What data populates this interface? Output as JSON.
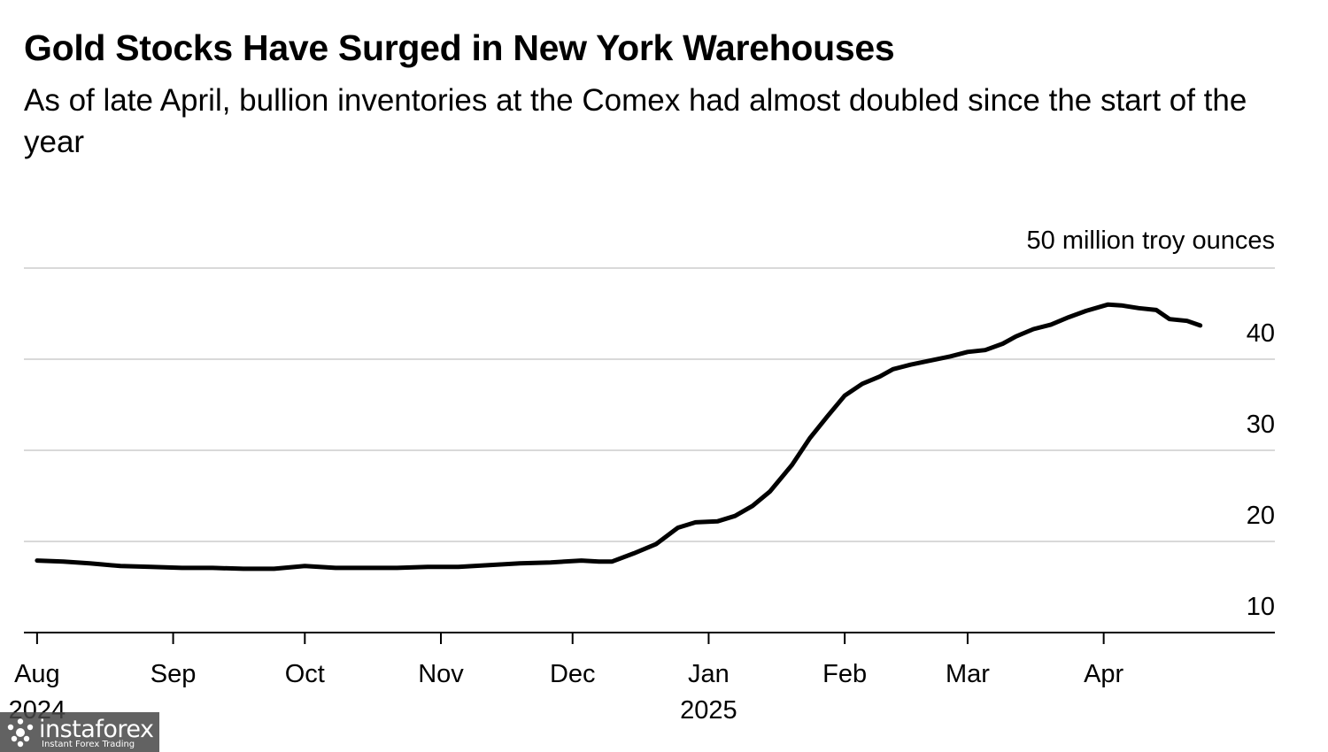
{
  "chart_data": {
    "type": "line",
    "title": "Gold Stocks Have Surged in New York Warehouses",
    "subtitle": "As of late April, bullion inventories at the Comex had almost doubled since the start of the year",
    "unit_label": "50 million troy ounces",
    "yaxis": {
      "position": "right",
      "ylim": [
        10,
        50
      ],
      "ticks": [
        10,
        20,
        30,
        40
      ],
      "tick_labels": [
        "10",
        "20",
        "30",
        "40"
      ]
    },
    "xaxis": {
      "xlim": [
        "2024-07-29",
        "2025-05-10"
      ],
      "ticks": [
        {
          "date": "2024-08-01",
          "label": "Aug",
          "year": "2024"
        },
        {
          "date": "2024-09-01",
          "label": "Sep",
          "year": ""
        },
        {
          "date": "2024-10-01",
          "label": "Oct",
          "year": ""
        },
        {
          "date": "2024-11-01",
          "label": "Nov",
          "year": ""
        },
        {
          "date": "2024-12-01",
          "label": "Dec",
          "year": ""
        },
        {
          "date": "2025-01-01",
          "label": "Jan",
          "year": "2025"
        },
        {
          "date": "2025-02-01",
          "label": "Feb",
          "year": ""
        },
        {
          "date": "2025-03-01",
          "label": "Mar",
          "year": ""
        },
        {
          "date": "2025-04-01",
          "label": "Apr",
          "year": ""
        }
      ]
    },
    "grid": true,
    "series": [
      {
        "x": [
          "2024-08-01",
          "2024-08-07",
          "2024-08-13",
          "2024-08-20",
          "2024-08-27",
          "2024-09-03",
          "2024-09-10",
          "2024-09-17",
          "2024-09-24",
          "2024-10-01",
          "2024-10-08",
          "2024-10-15",
          "2024-10-22",
          "2024-10-29",
          "2024-11-05",
          "2024-11-12",
          "2024-11-19",
          "2024-11-26",
          "2024-12-03",
          "2024-12-07",
          "2024-12-10",
          "2024-12-15",
          "2024-12-20",
          "2024-12-25",
          "2024-12-29",
          "2025-01-03",
          "2025-01-07",
          "2025-01-11",
          "2025-01-15",
          "2025-01-20",
          "2025-01-24",
          "2025-01-28",
          "2025-02-01",
          "2025-02-05",
          "2025-02-09",
          "2025-02-12",
          "2025-02-16",
          "2025-02-20",
          "2025-02-25",
          "2025-03-01",
          "2025-03-05",
          "2025-03-09",
          "2025-03-12",
          "2025-03-16",
          "2025-03-20",
          "2025-03-24",
          "2025-03-28",
          "2025-04-02",
          "2025-04-05",
          "2025-04-09",
          "2025-04-13",
          "2025-04-16",
          "2025-04-20",
          "2025-04-23"
        ],
        "y": [
          17.9,
          17.8,
          17.6,
          17.3,
          17.2,
          17.1,
          17.1,
          17.0,
          17.0,
          17.3,
          17.1,
          17.1,
          17.1,
          17.2,
          17.2,
          17.4,
          17.6,
          17.7,
          17.9,
          17.8,
          17.8,
          18.7,
          19.7,
          21.5,
          22.1,
          22.2,
          22.8,
          23.9,
          25.5,
          28.4,
          31.3,
          33.7,
          36.0,
          37.3,
          38.1,
          38.9,
          39.4,
          39.8,
          40.3,
          40.8,
          41.0,
          41.7,
          42.5,
          43.3,
          43.8,
          44.6,
          45.3,
          46.0,
          45.9,
          45.6,
          45.4,
          44.4,
          44.2,
          43.7
        ]
      }
    ]
  },
  "watermark": {
    "name": "instaforex",
    "tagline": "Instant Forex Trading"
  }
}
